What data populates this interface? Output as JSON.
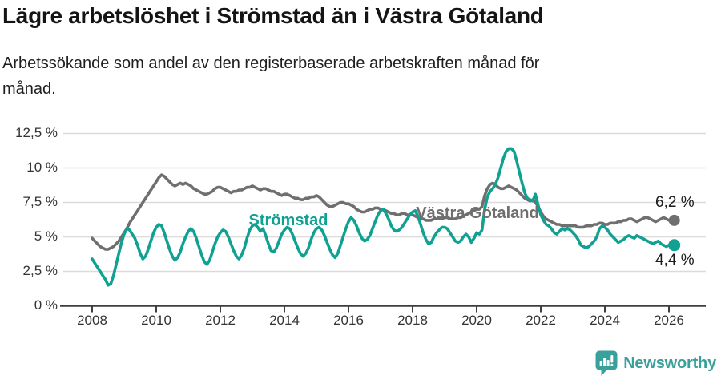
{
  "header": {
    "title": "Lägre arbetslöshet i Strömstad än i Västra Götaland",
    "subtitle_lines": [
      "Arbetssökande som andel av den registerbaserade arbetskraften månad för",
      "månad."
    ]
  },
  "colors": {
    "stromstad": "#11A192",
    "vastra_gotaland": "#6F6F6F",
    "gridline": "#DBDBDB",
    "axis": "#3E3E3E",
    "tick_text": "#333333",
    "brand": "#3AA09B"
  },
  "chart_data": {
    "type": "line",
    "title": "Lägre arbetslöshet i Strömstad än i Västra Götaland",
    "subtitle": "Arbetssökande som andel av den registerbaserade arbetskraften månad för månad.",
    "x_unit": "month",
    "x_start_year": 2008,
    "x_end": "2026-03",
    "xlabel": "",
    "ylabel": "",
    "ylim": [
      0,
      13.2
    ],
    "grid": "horizontal",
    "legend_position": "inline-labels",
    "yticks": [
      {
        "value": 0,
        "label": "0 %"
      },
      {
        "value": 2.5,
        "label": "2,5 %"
      },
      {
        "value": 5,
        "label": "5 %"
      },
      {
        "value": 7.5,
        "label": "7,5 %"
      },
      {
        "value": 10,
        "label": "10 %"
      },
      {
        "value": 12.5,
        "label": "12,5 %"
      }
    ],
    "xticks": [
      {
        "value": 2008,
        "label": "2008"
      },
      {
        "value": 2010,
        "label": "2010"
      },
      {
        "value": 2012,
        "label": "2012"
      },
      {
        "value": 2014,
        "label": "2014"
      },
      {
        "value": 2016,
        "label": "2016"
      },
      {
        "value": 2018,
        "label": "2018"
      },
      {
        "value": 2020,
        "label": "2020"
      },
      {
        "value": 2022,
        "label": "2022"
      },
      {
        "value": 2024,
        "label": "2024"
      },
      {
        "value": 2026,
        "label": "2026"
      }
    ],
    "series": [
      {
        "name": "Västra Götaland",
        "color": "#6F6F6F",
        "end_value": 6.2,
        "end_label": "6,2 %",
        "dot_radius": 7,
        "values": [
          4.9,
          4.7,
          4.5,
          4.3,
          4.2,
          4.1,
          4.1,
          4.2,
          4.3,
          4.5,
          4.7,
          5.0,
          5.3,
          5.6,
          6.0,
          6.3,
          6.6,
          6.9,
          7.2,
          7.5,
          7.8,
          8.1,
          8.4,
          8.7,
          9.0,
          9.3,
          9.5,
          9.4,
          9.2,
          9.0,
          8.8,
          8.7,
          8.8,
          8.9,
          8.8,
          8.9,
          8.8,
          8.7,
          8.5,
          8.4,
          8.3,
          8.2,
          8.1,
          8.1,
          8.2,
          8.3,
          8.5,
          8.6,
          8.6,
          8.5,
          8.4,
          8.3,
          8.2,
          8.3,
          8.3,
          8.4,
          8.4,
          8.5,
          8.6,
          8.6,
          8.7,
          8.6,
          8.5,
          8.4,
          8.5,
          8.5,
          8.4,
          8.3,
          8.3,
          8.2,
          8.1,
          8.0,
          8.1,
          8.1,
          8.0,
          7.9,
          7.8,
          7.8,
          7.7,
          7.7,
          7.8,
          7.8,
          7.9,
          7.9,
          8.0,
          7.9,
          7.7,
          7.5,
          7.3,
          7.2,
          7.2,
          7.3,
          7.4,
          7.5,
          7.5,
          7.4,
          7.4,
          7.3,
          7.2,
          7.0,
          6.9,
          6.8,
          6.8,
          6.9,
          7.0,
          7.0,
          7.1,
          7.1,
          7.0,
          7.0,
          6.9,
          6.8,
          6.7,
          6.7,
          6.6,
          6.6,
          6.7,
          6.7,
          6.6,
          6.6,
          6.6,
          6.5,
          6.4,
          6.3,
          6.3,
          6.2,
          6.2,
          6.2,
          6.3,
          6.3,
          6.3,
          6.3,
          6.4,
          6.4,
          6.3,
          6.3,
          6.3,
          6.4,
          6.4,
          6.5,
          6.6,
          6.7,
          6.8,
          6.9,
          7.0,
          7.0,
          7.2,
          8.0,
          8.5,
          8.8,
          8.9,
          8.8,
          8.6,
          8.5,
          8.5,
          8.6,
          8.7,
          8.6,
          8.5,
          8.4,
          8.2,
          8.0,
          7.8,
          7.7,
          7.6,
          7.7,
          7.5,
          7.2,
          6.8,
          6.5,
          6.3,
          6.2,
          6.1,
          6.0,
          5.9,
          5.9,
          5.8,
          5.8,
          5.8,
          5.8,
          5.8,
          5.8,
          5.7,
          5.7,
          5.7,
          5.8,
          5.8,
          5.8,
          5.9,
          5.9,
          6.0,
          6.0,
          5.9,
          5.9,
          6.0,
          6.0,
          6.0,
          6.1,
          6.1,
          6.2,
          6.2,
          6.3,
          6.3,
          6.2,
          6.1,
          6.2,
          6.3,
          6.4,
          6.4,
          6.3,
          6.2,
          6.1,
          6.2,
          6.3,
          6.4,
          6.3,
          6.2,
          6.2,
          6.2
        ]
      },
      {
        "name": "Strömstad",
        "color": "#11A192",
        "end_value": 4.4,
        "end_label": "4,4 %",
        "dot_radius": 7.5,
        "values": [
          3.4,
          3.1,
          2.8,
          2.5,
          2.2,
          1.9,
          1.5,
          1.6,
          2.2,
          3.0,
          3.8,
          4.6,
          5.2,
          5.6,
          5.5,
          5.2,
          4.9,
          4.4,
          3.8,
          3.4,
          3.6,
          4.1,
          4.7,
          5.3,
          5.7,
          5.9,
          5.8,
          5.3,
          4.7,
          4.1,
          3.6,
          3.3,
          3.5,
          3.9,
          4.5,
          5.0,
          5.4,
          5.6,
          5.4,
          4.9,
          4.3,
          3.7,
          3.2,
          3.0,
          3.3,
          3.9,
          4.5,
          5.0,
          5.3,
          5.5,
          5.4,
          5.0,
          4.5,
          4.0,
          3.6,
          3.4,
          3.7,
          4.2,
          4.9,
          5.5,
          5.8,
          5.9,
          5.7,
          5.4,
          5.6,
          5.1,
          4.5,
          4.0,
          3.9,
          4.2,
          4.7,
          5.2,
          5.5,
          5.7,
          5.6,
          5.2,
          4.7,
          4.2,
          3.8,
          3.6,
          3.8,
          4.2,
          4.8,
          5.3,
          5.6,
          5.7,
          5.5,
          5.1,
          4.6,
          4.1,
          3.7,
          3.5,
          3.8,
          4.4,
          5.0,
          5.6,
          6.1,
          6.4,
          6.2,
          5.8,
          5.3,
          4.9,
          4.7,
          4.8,
          5.1,
          5.6,
          6.1,
          6.6,
          6.9,
          7.0,
          6.7,
          6.3,
          5.8,
          5.5,
          5.4,
          5.5,
          5.7,
          6.0,
          6.3,
          6.6,
          6.8,
          6.9,
          6.5,
          5.9,
          5.3,
          4.8,
          4.5,
          4.6,
          5.0,
          5.3,
          5.5,
          5.7,
          5.7,
          5.6,
          5.3,
          5.0,
          4.7,
          4.6,
          4.7,
          5.0,
          5.2,
          5.0,
          4.6,
          4.9,
          5.3,
          5.2,
          5.5,
          7.0,
          7.9,
          8.3,
          8.5,
          8.8,
          9.3,
          10.0,
          10.7,
          11.2,
          11.4,
          11.4,
          11.2,
          10.5,
          9.7,
          8.9,
          8.2,
          7.8,
          7.7,
          7.6,
          8.1,
          7.3,
          6.6,
          6.2,
          5.9,
          5.8,
          5.6,
          5.3,
          5.2,
          5.4,
          5.6,
          5.5,
          5.6,
          5.5,
          5.3,
          5.1,
          4.8,
          4.4,
          4.3,
          4.2,
          4.3,
          4.5,
          4.7,
          5.0,
          5.6,
          5.8,
          5.7,
          5.5,
          5.2,
          5.0,
          4.8,
          4.6,
          4.7,
          4.8,
          5.0,
          5.1,
          5.0,
          4.9,
          5.1,
          5.0,
          4.9,
          4.8,
          4.7,
          4.6,
          4.5,
          4.6,
          4.7,
          4.5,
          4.4,
          4.3,
          4.4,
          4.4,
          4.4
        ]
      }
    ]
  },
  "footer": {
    "brand": "Newsworthy"
  }
}
